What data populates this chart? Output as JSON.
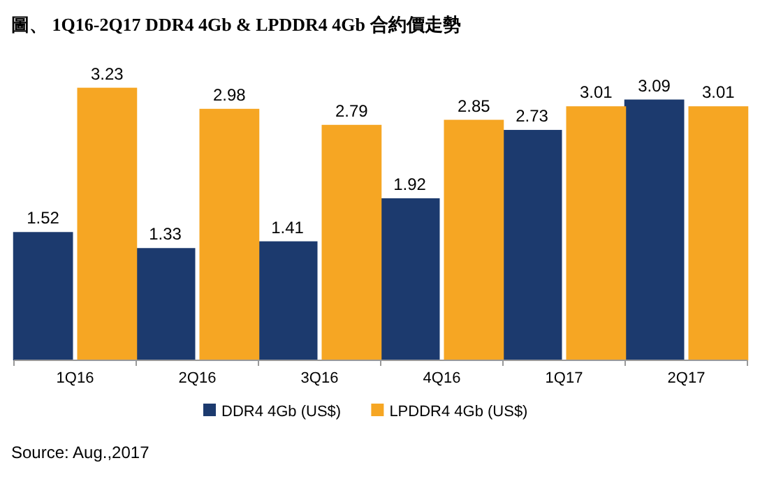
{
  "chart_data": {
    "type": "bar",
    "title": "圖、 1Q16-2Q17 DDR4 4Gb & LPDDR4 4Gb 合約價走勢",
    "categories": [
      "1Q16",
      "2Q16",
      "3Q16",
      "4Q16",
      "1Q17",
      "2Q17"
    ],
    "series": [
      {
        "name": "DDR4 4Gb (US$)",
        "color": "#1c3a6e",
        "values": [
          1.52,
          1.33,
          1.41,
          1.92,
          2.73,
          3.09
        ]
      },
      {
        "name": "LPDDR4 4Gb (US$)",
        "color": "#f6a623",
        "values": [
          3.23,
          2.98,
          2.79,
          2.85,
          3.01,
          3.01
        ]
      }
    ],
    "data_labels": true,
    "legend": "bottom",
    "annotations": [
      "Source: Aug.,2017"
    ]
  }
}
